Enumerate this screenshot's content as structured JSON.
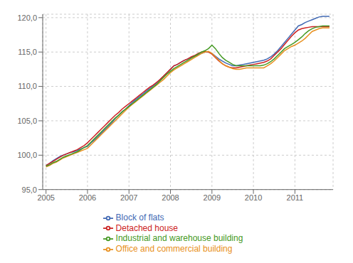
{
  "chart_data": {
    "type": "line",
    "title": "",
    "xlabel": "",
    "ylabel": "",
    "x": [
      2005.0,
      2005.0833,
      2005.1667,
      2005.25,
      2005.3333,
      2005.4166,
      2005.5,
      2005.5833,
      2005.6666,
      2005.75,
      2005.8333,
      2005.9166,
      2006.0,
      2006.0833,
      2006.1666,
      2006.2499,
      2006.3333,
      2006.4166,
      2006.4999,
      2006.5833,
      2006.6666,
      2006.7499,
      2006.8332,
      2006.9166,
      2006.9999,
      2007.0832,
      2007.1666,
      2007.2499,
      2007.3332,
      2007.4165,
      2007.4999,
      2007.5832,
      2007.6665,
      2007.7499,
      2007.8332,
      2007.9165,
      2007.9999,
      2008.0832,
      2008.1665,
      2008.2498,
      2008.3332,
      2008.4165,
      2008.4998,
      2008.5832,
      2008.6665,
      2008.7498,
      2008.8331,
      2008.9165,
      2008.9998,
      2009.0831,
      2009.1665,
      2009.2498,
      2009.3331,
      2009.4165,
      2009.4998,
      2009.5831,
      2009.6664,
      2009.7498,
      2009.8331,
      2009.9164,
      2009.9998,
      2010.0831,
      2010.1664,
      2010.2497,
      2010.3331,
      2010.4164,
      2010.4997,
      2010.5831,
      2010.6664,
      2010.7497,
      2010.833,
      2010.9164,
      2010.9997,
      2011.083,
      2011.1664,
      2011.2497,
      2011.333,
      2011.4164,
      2011.4997,
      2011.583,
      2011.6663,
      2011.7497,
      2011.833
    ],
    "xlim": [
      2004.92,
      2011.92
    ],
    "xticks": [
      2005,
      2006,
      2007,
      2008,
      2009,
      2010,
      2011
    ],
    "ylim": [
      95.0,
      120.5
    ],
    "yticks": [
      {
        "value": 95.0,
        "label": "95,0"
      },
      {
        "value": 100.0,
        "label": "100,0"
      },
      {
        "value": 105.0,
        "label": "105,0"
      },
      {
        "value": 110.0,
        "label": "110,0"
      },
      {
        "value": 115.0,
        "label": "115,0"
      },
      {
        "value": 120.0,
        "label": "120,0"
      }
    ],
    "grid": true,
    "legend": "bottom",
    "series": [
      {
        "name": "Block of flats",
        "color": "#4169b4",
        "values": [
          98.5,
          98.8,
          99.2,
          99.5,
          99.8,
          100.0,
          100.2,
          100.4,
          100.5,
          100.7,
          100.9,
          101.1,
          101.3,
          101.8,
          102.2,
          102.7,
          103.2,
          103.7,
          104.2,
          104.7,
          105.3,
          105.8,
          106.3,
          106.7,
          107.2,
          107.7,
          108.1,
          108.5,
          108.9,
          109.3,
          109.7,
          110.1,
          110.5,
          111.0,
          111.5,
          112.0,
          112.5,
          113.0,
          113.2,
          113.5,
          113.8,
          114.0,
          114.2,
          114.4,
          114.6,
          114.8,
          115.0,
          115.0,
          114.8,
          114.4,
          114.0,
          113.7,
          113.4,
          113.2,
          113.0,
          113.0,
          113.1,
          113.2,
          113.3,
          113.4,
          113.5,
          113.6,
          113.7,
          113.8,
          114.0,
          114.3,
          114.7,
          115.2,
          115.8,
          116.4,
          117.0,
          117.6,
          118.2,
          118.8,
          119.0,
          119.3,
          119.5,
          119.7,
          119.9,
          120.1,
          120.2,
          120.2,
          120.2
        ]
      },
      {
        "name": "Detached house",
        "color": "#cc2222",
        "values": [
          98.5,
          98.8,
          99.1,
          99.4,
          99.7,
          100.0,
          100.2,
          100.4,
          100.6,
          100.8,
          101.1,
          101.4,
          101.8,
          102.3,
          102.8,
          103.3,
          103.8,
          104.3,
          104.8,
          105.3,
          105.8,
          106.2,
          106.7,
          107.1,
          107.5,
          107.9,
          108.3,
          108.7,
          109.1,
          109.5,
          109.9,
          110.2,
          110.6,
          111.0,
          111.5,
          112.0,
          112.5,
          113.0,
          113.2,
          113.5,
          113.8,
          114.0,
          114.3,
          114.5,
          114.8,
          115.0,
          115.1,
          115.0,
          114.7,
          114.2,
          113.7,
          113.3,
          113.0,
          112.8,
          112.7,
          112.7,
          112.8,
          112.9,
          113.0,
          113.1,
          113.2,
          113.3,
          113.4,
          113.5,
          113.7,
          114.0,
          114.5,
          115.0,
          115.5,
          116.1,
          116.7,
          117.3,
          117.8,
          118.2,
          118.4,
          118.5,
          118.6,
          118.7,
          118.7,
          118.7,
          118.7,
          118.7,
          118.7
        ]
      },
      {
        "name": "Office and commercial building",
        "color": "#e89020",
        "values": [
          98.3,
          98.5,
          98.8,
          99.0,
          99.3,
          99.6,
          99.8,
          100.0,
          100.2,
          100.4,
          100.6,
          100.8,
          101.0,
          101.5,
          102.0,
          102.5,
          103.0,
          103.5,
          104.0,
          104.5,
          105.0,
          105.5,
          106.0,
          106.5,
          107.0,
          107.4,
          107.8,
          108.2,
          108.6,
          109.0,
          109.4,
          109.8,
          110.2,
          110.6,
          111.0,
          111.5,
          112.0,
          112.4,
          112.7,
          113.0,
          113.3,
          113.6,
          113.9,
          114.2,
          114.5,
          114.8,
          115.0,
          115.1,
          114.8,
          114.3,
          113.8,
          113.3,
          113.0,
          112.8,
          112.6,
          112.5,
          112.5,
          112.6,
          112.7,
          112.7,
          112.7,
          112.7,
          112.7,
          112.7,
          113.0,
          113.3,
          113.7,
          114.2,
          114.7,
          115.2,
          115.5,
          115.8,
          116.0,
          116.3,
          116.6,
          117.0,
          117.5,
          118.0,
          118.2,
          118.4,
          118.5,
          118.5,
          118.5
        ]
      },
      {
        "name": "Industrial and warehouse  building",
        "color": "#449922",
        "values": [
          98.4,
          98.6,
          98.9,
          99.1,
          99.4,
          99.7,
          99.9,
          100.1,
          100.3,
          100.5,
          100.8,
          101.1,
          101.4,
          101.9,
          102.4,
          102.9,
          103.4,
          103.9,
          104.4,
          104.9,
          105.4,
          105.8,
          106.3,
          106.7,
          107.1,
          107.5,
          107.9,
          108.3,
          108.7,
          109.1,
          109.5,
          109.9,
          110.3,
          110.8,
          111.3,
          111.8,
          112.2,
          112.6,
          112.9,
          113.2,
          113.5,
          113.8,
          114.1,
          114.4,
          114.7,
          115.0,
          115.2,
          115.5,
          116.0,
          115.5,
          114.8,
          114.2,
          113.8,
          113.5,
          113.2,
          113.0,
          113.0,
          113.0,
          113.0,
          113.0,
          113.0,
          113.0,
          113.0,
          113.1,
          113.3,
          113.6,
          114.0,
          114.5,
          115.0,
          115.5,
          115.8,
          116.1,
          116.4,
          116.8,
          117.2,
          117.7,
          118.1,
          118.4,
          118.6,
          118.7,
          118.8,
          118.8,
          118.8
        ]
      }
    ]
  }
}
